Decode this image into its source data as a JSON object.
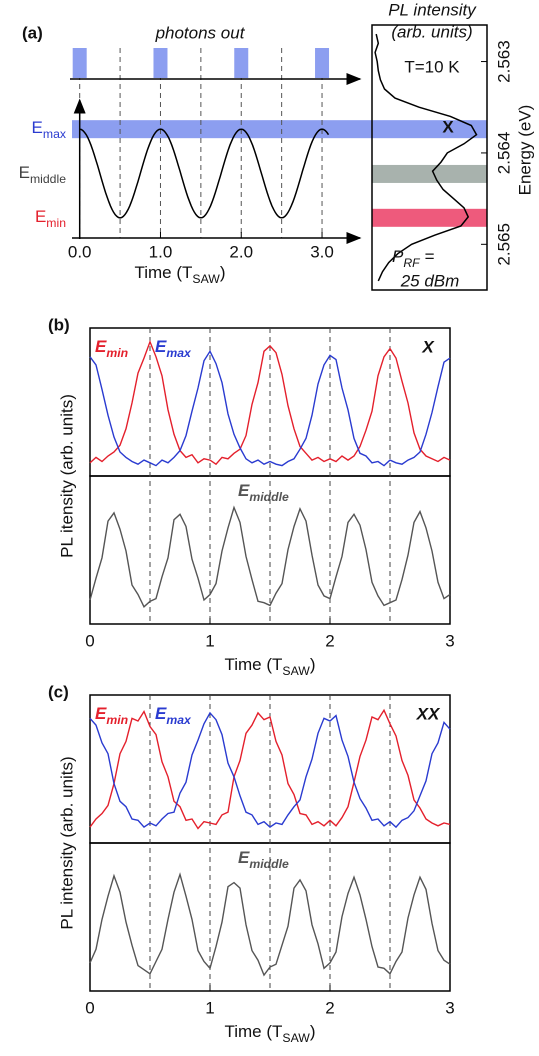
{
  "chart_data": [
    {
      "type": "schematic",
      "panel_label": "(a)",
      "title": "photons out",
      "xlabel": {
        "main": "Time (T",
        "sub": "SAW",
        "end": ")"
      },
      "xlim": [
        -0.12,
        3.47
      ],
      "xticks": [
        {
          "value": 0,
          "label": "0.0"
        },
        {
          "value": 1,
          "label": "1.0"
        },
        {
          "value": 2,
          "label": "2.0"
        },
        {
          "value": 3,
          "label": "3.0"
        }
      ],
      "guide_lines": [
        0,
        0.5,
        1,
        1.5,
        2,
        2.5,
        3
      ],
      "photon_times": [
        0,
        1,
        2,
        3
      ],
      "photon_color": "#8c9ef0",
      "ylim": [
        2.5626,
        2.5655
      ],
      "levels": [
        {
          "main": "E",
          "sub": "max",
          "energy": 2.56374,
          "color": "#8c9ef0",
          "label_color": "#2a3bd0",
          "span": "full"
        },
        {
          "main": "E",
          "sub": "middle",
          "energy": 2.56423,
          "color": "#a8b2ad",
          "label_color": "#404040",
          "span": "spectrum"
        },
        {
          "main": "E",
          "sub": "min",
          "energy": 2.56471,
          "color": "#ee5a7c",
          "label_color": "#e4202c",
          "span": "spectrum"
        }
      ],
      "spectrum": {
        "title": "PL intensity",
        "subtitle": "(arb. units)",
        "ylabel": "Energy (eV)",
        "yticks": [
          2.563,
          2.564,
          2.565
        ],
        "xlim": [
          0,
          110
        ],
        "energy": [
          2.5627,
          2.5628,
          2.5629,
          2.563,
          2.5631,
          2.5632,
          2.5633,
          2.5634,
          2.5635,
          2.5636,
          2.5637,
          2.5638,
          2.5639,
          2.564,
          2.5641,
          2.5642,
          2.5643,
          2.5644,
          2.5645,
          2.5646,
          2.5647,
          2.5648,
          2.5649,
          2.565,
          2.5651,
          2.5652,
          2.5653,
          2.5654
        ],
        "values": [
          4,
          6,
          3,
          5,
          6,
          8,
          12,
          22,
          45,
          75,
          95,
          100,
          88,
          72,
          66,
          58,
          62,
          68,
          78,
          88,
          92,
          85,
          60,
          38,
          25,
          16,
          10,
          6
        ],
        "temperature": "T=10 K",
        "peak_label": "X",
        "power": {
          "main": "P",
          "sub": "RF",
          "end": " ="
        },
        "power_value": "25 dBm"
      }
    },
    {
      "type": "line",
      "panel_label": "(b)",
      "ylabel": "PL itensity (arb. units)",
      "xlabel": {
        "main": "Time (T",
        "sub": "SAW",
        "end": ")"
      },
      "xlim": [
        0,
        3
      ],
      "xticks": [
        0,
        1,
        2,
        3
      ],
      "ylim": [
        0,
        100
      ],
      "guide_lines": [
        0.5,
        1,
        1.5,
        2,
        2.5
      ],
      "annotation": "X",
      "x": [
        0,
        0.05,
        0.1,
        0.15,
        0.2,
        0.25,
        0.3,
        0.35,
        0.4,
        0.45,
        0.5,
        0.55,
        0.6,
        0.65,
        0.7,
        0.75,
        0.8,
        0.85,
        0.9,
        0.95,
        1,
        1.05,
        1.1,
        1.15,
        1.2,
        1.25,
        1.3,
        1.35,
        1.4,
        1.45,
        1.5,
        1.55,
        1.6,
        1.65,
        1.7,
        1.75,
        1.8,
        1.85,
        1.9,
        1.95,
        2,
        2.05,
        2.1,
        2.15,
        2.2,
        2.25,
        2.3,
        2.35,
        2.4,
        2.45,
        2.5,
        2.55,
        2.6,
        2.65,
        2.7,
        2.75,
        2.8,
        2.85,
        2.9,
        2.95,
        3
      ],
      "series_top": [
        {
          "name": "E",
          "name_sub": "min",
          "color": "#e4202c",
          "values": [
            6,
            10,
            7,
            11,
            14,
            19,
            31,
            50,
            72,
            83,
            95,
            84,
            70,
            45,
            27,
            15,
            10,
            12,
            6,
            9,
            8,
            5,
            10,
            9,
            13,
            16,
            26,
            49,
            65,
            88,
            92,
            87,
            71,
            48,
            31,
            18,
            13,
            8,
            10,
            7,
            9,
            7,
            11,
            8,
            11,
            18,
            30,
            44,
            70,
            84,
            90,
            83,
            66,
            50,
            28,
            16,
            11,
            9,
            7,
            10,
            8
          ]
        },
        {
          "name": "E",
          "name_sub": "max",
          "color": "#2a3bd0",
          "values": [
            84,
            78,
            60,
            41,
            25,
            14,
            10,
            7,
            5,
            8,
            6,
            4,
            8,
            6,
            10,
            15,
            26,
            44,
            61,
            81,
            88,
            79,
            65,
            42,
            27,
            17,
            9,
            6,
            8,
            5,
            7,
            5,
            4,
            7,
            9,
            16,
            24,
            41,
            64,
            78,
            85,
            82,
            61,
            45,
            24,
            13,
            11,
            6,
            7,
            4,
            8,
            6,
            5,
            8,
            10,
            14,
            27,
            43,
            62,
            80,
            83
          ]
        }
      ],
      "series_bottom": [
        {
          "name": "E",
          "name_sub": "middle",
          "color": "#555555",
          "values": [
            14,
            30,
            45,
            72,
            78,
            66,
            50,
            25,
            18,
            9,
            13,
            15,
            31,
            45,
            73,
            77,
            68,
            44,
            30,
            14,
            18,
            26,
            50,
            67,
            82,
            71,
            46,
            29,
            13,
            12,
            10,
            19,
            26,
            51,
            68,
            81,
            72,
            47,
            25,
            17,
            15,
            31,
            46,
            71,
            77,
            69,
            51,
            27,
            17,
            10,
            12,
            14,
            29,
            47,
            71,
            79,
            67,
            50,
            27,
            15,
            18
          ]
        }
      ]
    },
    {
      "type": "line",
      "panel_label": "(c)",
      "ylabel": "PL intensity (arb. units)",
      "xlabel": {
        "main": "Time (T",
        "sub": "SAW",
        "end": ")"
      },
      "xlim": [
        0,
        3
      ],
      "xticks": [
        0,
        1,
        2,
        3
      ],
      "ylim": [
        0,
        100
      ],
      "guide_lines": [
        0.5,
        1,
        1.5,
        2,
        2.5
      ],
      "annotation": "XX",
      "x": [
        0,
        0.05,
        0.1,
        0.15,
        0.2,
        0.25,
        0.3,
        0.35,
        0.4,
        0.45,
        0.5,
        0.55,
        0.6,
        0.65,
        0.7,
        0.75,
        0.8,
        0.85,
        0.9,
        0.95,
        1,
        1.05,
        1.1,
        1.15,
        1.2,
        1.25,
        1.3,
        1.35,
        1.4,
        1.45,
        1.5,
        1.55,
        1.6,
        1.65,
        1.7,
        1.75,
        1.8,
        1.85,
        1.9,
        1.95,
        2,
        2.05,
        2.1,
        2.15,
        2.2,
        2.25,
        2.3,
        2.35,
        2.4,
        2.45,
        2.5,
        2.55,
        2.6,
        2.65,
        2.7,
        2.75,
        2.8,
        2.85,
        2.9,
        2.95,
        3
      ],
      "series_top": [
        {
          "name": "E",
          "name_sub": "min",
          "color": "#e4202c",
          "values": [
            8,
            14,
            18,
            24,
            40,
            62,
            71,
            88,
            86,
            93,
            82,
            76,
            56,
            45,
            27,
            23,
            13,
            14,
            7,
            12,
            11,
            10,
            17,
            19,
            45,
            57,
            77,
            83,
            92,
            87,
            89,
            71,
            61,
            40,
            32,
            18,
            17,
            10,
            12,
            9,
            13,
            9,
            15,
            23,
            41,
            60,
            72,
            89,
            87,
            94,
            84,
            75,
            57,
            46,
            28,
            22,
            14,
            11,
            9,
            11,
            10
          ]
        },
        {
          "name": "E",
          "name_sub": "max",
          "color": "#2a3bd0",
          "values": [
            88,
            83,
            70,
            62,
            40,
            27,
            23,
            14,
            13,
            8,
            11,
            9,
            14,
            18,
            19,
            33,
            41,
            61,
            72,
            84,
            92,
            87,
            76,
            55,
            45,
            31,
            19,
            17,
            10,
            12,
            8,
            11,
            10,
            17,
            23,
            28,
            45,
            58,
            77,
            88,
            86,
            90,
            72,
            60,
            41,
            29,
            22,
            13,
            14,
            9,
            12,
            8,
            13,
            15,
            20,
            31,
            42,
            62,
            70,
            85,
            80
          ]
        }
      ],
      "series_bottom": [
        {
          "name": "E",
          "name_sub": "middle",
          "color": "#555555",
          "values": [
            17,
            27,
            49,
            66,
            81,
            69,
            47,
            30,
            15,
            12,
            9,
            18,
            27,
            49,
            69,
            82,
            66,
            49,
            26,
            18,
            13,
            29,
            47,
            73,
            76,
            72,
            45,
            26,
            19,
            8,
            14,
            16,
            30,
            44,
            72,
            78,
            70,
            45,
            31,
            13,
            17,
            25,
            51,
            68,
            80,
            67,
            49,
            29,
            14,
            13,
            9,
            18,
            25,
            50,
            67,
            80,
            71,
            46,
            26,
            19,
            16
          ]
        }
      ]
    }
  ]
}
